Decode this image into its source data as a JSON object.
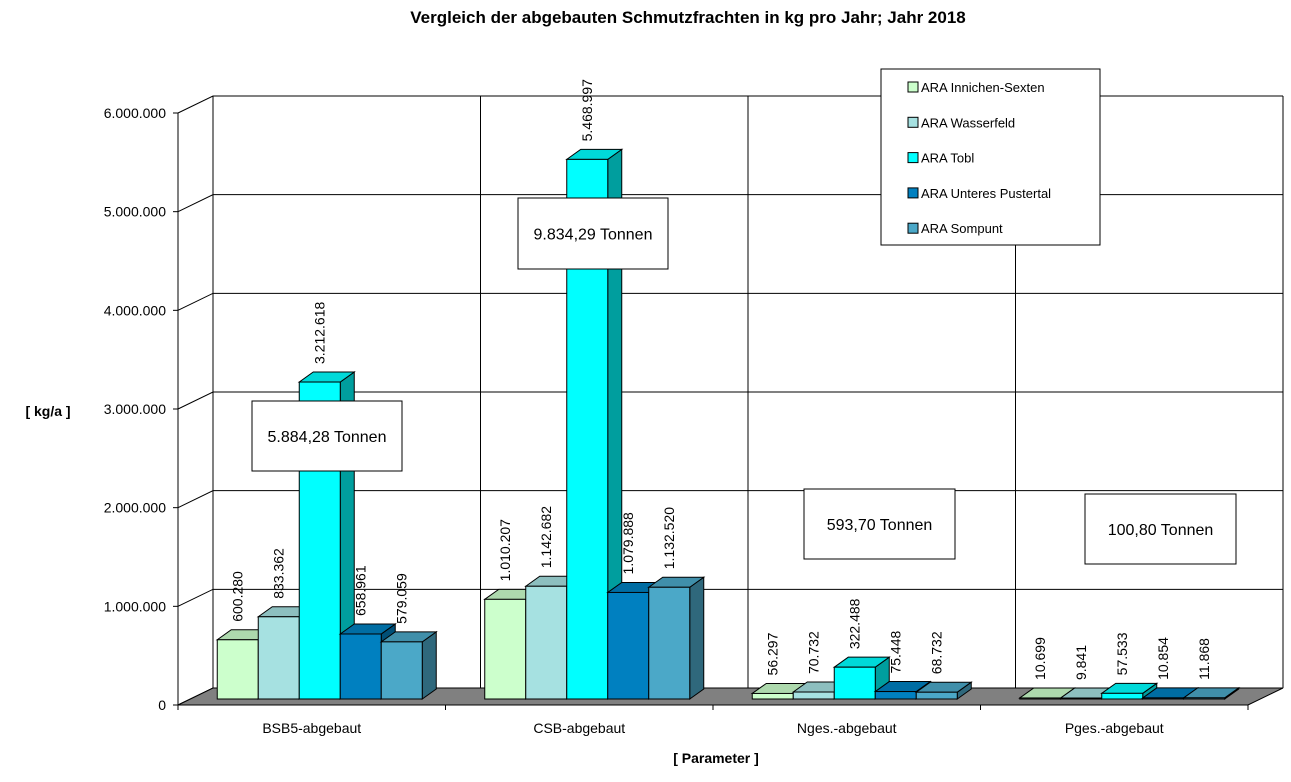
{
  "chart_data": {
    "type": "bar",
    "title": "Vergleich der abgebauten Schmutzfrachten in kg pro Jahr; Jahr 2018",
    "xlabel": "[ Parameter ]",
    "ylabel": "[ kg/a ]",
    "ylim": [
      0,
      6000000
    ],
    "yticks": [
      0,
      1000000,
      2000000,
      3000000,
      4000000,
      5000000,
      6000000
    ],
    "ytick_labels": [
      "0",
      "1.000.000",
      "2.000.000",
      "3.000.000",
      "4.000.000",
      "5.000.000",
      "6.000.000"
    ],
    "grid": true,
    "legend_position": "top-right",
    "categories": [
      "BSB5-abgebaut",
      "CSB-abgebaut",
      "Nges.-abgebaut",
      "Pges.-abgebaut"
    ],
    "series": [
      {
        "name": "ARA Innichen-Sexten",
        "color": "#ccffcc",
        "values": [
          600280,
          1010207,
          56297,
          10699
        ],
        "labels": [
          "600.280",
          "1.010.207",
          "56.297",
          "10.699"
        ]
      },
      {
        "name": "ARA Wasserfeld",
        "color": "#a6e1e1",
        "values": [
          833362,
          1142682,
          70732,
          9841
        ],
        "labels": [
          "833.362",
          "1.142.682",
          "70.732",
          "9.841"
        ]
      },
      {
        "name": "ARA Tobl",
        "color": "#00ffff",
        "values": [
          3212618,
          5468997,
          322488,
          57533
        ],
        "labels": [
          "3.212.618",
          "5.468.997",
          "322.488",
          "57.533"
        ]
      },
      {
        "name": "ARA Unteres Pustertal",
        "color": "#0080c0",
        "values": [
          658961,
          1079888,
          75448,
          10854
        ],
        "labels": [
          "658.961",
          "1.079.888",
          "75.448",
          "10.854"
        ]
      },
      {
        "name": "ARA Sompunt",
        "color": "#4ba8c8",
        "values": [
          579059,
          1132520,
          68732,
          11868
        ],
        "labels": [
          "579.059",
          "1.132.520",
          "68.732",
          "11.868"
        ]
      }
    ],
    "annotations": [
      "5.884,28 Tonnen",
      "9.834,29 Tonnen",
      "593,70 Tonnen",
      "100,80 Tonnen"
    ]
  }
}
